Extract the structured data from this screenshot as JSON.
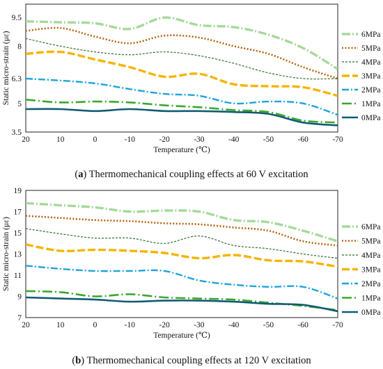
{
  "chart_data": [
    {
      "type": "line",
      "panel_letter": "a",
      "caption": "Thermomechanical coupling effects at 60 V excitation",
      "xlabel": "Temperature (℃)",
      "ylabel": "Static micro-strain (με)",
      "x": [
        20,
        10,
        0,
        -10,
        -20,
        -30,
        -40,
        -50,
        -60,
        -70
      ],
      "x_tick_labels": [
        "20",
        "10",
        "0",
        "-10",
        "-20",
        "-30",
        "-40",
        "-50",
        "-60",
        "-70"
      ],
      "xlim": [
        20,
        -70
      ],
      "ylim": [
        3.5,
        10.2
      ],
      "y_ticks": [
        3.5,
        5,
        6.3,
        8,
        9.5
      ],
      "y_tick_labels": [
        "3.5",
        "5",
        "6.3",
        "8",
        "9.5"
      ],
      "legend_position": "right",
      "series": [
        {
          "name": "6MPa",
          "values": [
            9.3,
            9.25,
            9.2,
            8.9,
            9.5,
            9.1,
            9.0,
            8.6,
            7.9,
            6.8
          ]
        },
        {
          "name": "5MPa",
          "values": [
            8.8,
            8.95,
            8.5,
            8.15,
            8.55,
            8.45,
            8.0,
            7.6,
            6.9,
            6.3
          ]
        },
        {
          "name": "4MPa",
          "values": [
            8.4,
            8.0,
            7.7,
            7.55,
            7.7,
            7.5,
            7.1,
            6.6,
            6.3,
            6.3
          ]
        },
        {
          "name": "3MPa",
          "values": [
            7.6,
            7.7,
            7.3,
            6.9,
            6.4,
            6.55,
            6.0,
            5.9,
            5.85,
            5.4
          ]
        },
        {
          "name": "2MPa",
          "values": [
            6.3,
            6.2,
            6.05,
            5.75,
            5.5,
            5.4,
            5.0,
            5.1,
            5.0,
            4.4
          ]
        },
        {
          "name": "1MPa",
          "values": [
            5.2,
            5.05,
            5.1,
            5.05,
            4.9,
            4.8,
            4.65,
            4.55,
            4.1,
            4.0
          ]
        },
        {
          "name": "0MPa",
          "values": [
            4.7,
            4.7,
            4.6,
            4.7,
            4.6,
            4.6,
            4.55,
            4.45,
            4.0,
            3.85
          ]
        }
      ]
    },
    {
      "type": "line",
      "panel_letter": "b",
      "caption": "Thermomechanical coupling effects at 120 V excitation",
      "xlabel": "Temperature (℃)",
      "ylabel": "Static micro-strain (με)",
      "x": [
        20,
        10,
        0,
        -10,
        -20,
        -30,
        -40,
        -50,
        -60,
        -70
      ],
      "x_tick_labels": [
        "20",
        "10",
        "0",
        "-10",
        "-20",
        "-30",
        "-40",
        "-50",
        "-60",
        "-70"
      ],
      "xlim": [
        20,
        -70
      ],
      "ylim": [
        7,
        19
      ],
      "y_ticks": [
        7,
        9,
        11,
        13,
        15,
        17,
        19
      ],
      "y_tick_labels": [
        "7",
        "9",
        "11",
        "13",
        "15",
        "17",
        "19"
      ],
      "legend_position": "right",
      "series": [
        {
          "name": "6MPa",
          "values": [
            17.8,
            17.6,
            17.4,
            17.0,
            17.1,
            17.0,
            16.2,
            16.0,
            15.2,
            14.2
          ]
        },
        {
          "name": "5MPa",
          "values": [
            16.6,
            16.4,
            16.2,
            16.1,
            15.9,
            15.8,
            15.5,
            15.2,
            14.2,
            13.8
          ]
        },
        {
          "name": "4MPa",
          "values": [
            15.4,
            14.9,
            14.5,
            14.5,
            14.0,
            14.7,
            13.8,
            13.5,
            13.0,
            12.6
          ]
        },
        {
          "name": "3MPa",
          "values": [
            13.9,
            13.3,
            13.4,
            13.3,
            13.1,
            12.6,
            12.9,
            12.4,
            12.3,
            11.8
          ]
        },
        {
          "name": "2MPa",
          "values": [
            11.9,
            11.6,
            11.4,
            11.4,
            11.4,
            10.5,
            10.1,
            9.9,
            9.9,
            8.8
          ]
        },
        {
          "name": "1MPa",
          "values": [
            9.5,
            9.4,
            9.0,
            9.2,
            8.9,
            8.8,
            8.7,
            8.4,
            8.1,
            7.7
          ]
        },
        {
          "name": "0MPa",
          "values": [
            8.9,
            8.8,
            8.7,
            8.5,
            8.6,
            8.6,
            8.5,
            8.3,
            8.2,
            7.6
          ]
        }
      ]
    }
  ],
  "series_styles": [
    {
      "color": "#a5d99a",
      "dash": "double-dash-dot",
      "width": 3.4
    },
    {
      "color": "#b8620e",
      "dash": "dotted",
      "width": 2.6
    },
    {
      "color": "#2e6b2a",
      "dash": "short-dash",
      "width": 1.2
    },
    {
      "color": "#f5b400",
      "dash": "long-dash",
      "width": 3.4
    },
    {
      "color": "#1ea3dc",
      "dash": "dash-dot",
      "width": 2.4
    },
    {
      "color": "#3aa82c",
      "dash": "long-dash-dot",
      "width": 2.6
    },
    {
      "color": "#0f5c73",
      "dash": "solid",
      "width": 2.6
    }
  ]
}
